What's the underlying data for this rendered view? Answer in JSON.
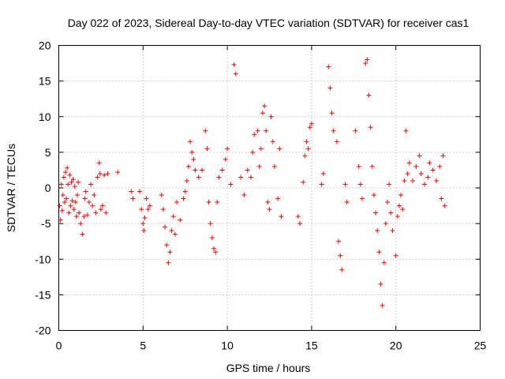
{
  "chart_data": {
    "type": "scatter",
    "title": "Day 022 of 2023, Sidereal Day-to-day VTEC variation (SDTVAR) for receiver cas1",
    "xlabel": "GPS time / hours",
    "ylabel": "SDTVAR / TECUs",
    "xlim": [
      0,
      25
    ],
    "ylim": [
      -20,
      20
    ],
    "xticks": [
      0,
      5,
      10,
      15,
      20,
      25
    ],
    "yticks": [
      -20,
      -15,
      -10,
      -5,
      0,
      5,
      10,
      15,
      20
    ],
    "grid": true,
    "marker": "+",
    "color": "#ff0000",
    "series": [
      {
        "name": "SDTVAR",
        "points": [
          [
            0.05,
            -2.5
          ],
          [
            0.1,
            -4.5
          ],
          [
            0.15,
            0.5
          ],
          [
            0.2,
            -3.2
          ],
          [
            0.25,
            -1.0
          ],
          [
            0.3,
            1.5
          ],
          [
            0.35,
            -2.0
          ],
          [
            0.4,
            2.2
          ],
          [
            0.45,
            -1.5
          ],
          [
            0.5,
            2.8
          ],
          [
            0.55,
            0.5
          ],
          [
            0.6,
            -3.5
          ],
          [
            0.65,
            1.8
          ],
          [
            0.7,
            -2.5
          ],
          [
            0.75,
            0.8
          ],
          [
            0.8,
            -1.8
          ],
          [
            0.85,
            1.2
          ],
          [
            0.9,
            -3.0
          ],
          [
            0.95,
            0.2
          ],
          [
            1.0,
            -2.0
          ],
          [
            1.05,
            -4.0
          ],
          [
            1.1,
            -1.0
          ],
          [
            1.15,
            0.8
          ],
          [
            1.2,
            -3.5
          ],
          [
            1.3,
            -5.0
          ],
          [
            1.4,
            -6.5
          ],
          [
            1.5,
            -4.0
          ],
          [
            1.55,
            -1.5
          ],
          [
            1.6,
            -0.5
          ],
          [
            1.7,
            -3.8
          ],
          [
            1.8,
            -2.0
          ],
          [
            1.9,
            0.5
          ],
          [
            2.0,
            -2.5
          ],
          [
            2.1,
            -1.0
          ],
          [
            2.2,
            -3.5
          ],
          [
            2.3,
            1.5
          ],
          [
            2.4,
            3.5
          ],
          [
            2.45,
            2.0
          ],
          [
            2.5,
            -3.0
          ],
          [
            2.6,
            -2.5
          ],
          [
            2.7,
            1.8
          ],
          [
            2.8,
            -3.5
          ],
          [
            2.9,
            2.0
          ],
          [
            3.5,
            2.2
          ],
          [
            4.3,
            -0.5
          ],
          [
            4.4,
            -1.5
          ],
          [
            4.8,
            -0.5
          ],
          [
            4.9,
            -3.0
          ],
          [
            5.0,
            -5.0
          ],
          [
            5.05,
            -6.0
          ],
          [
            5.1,
            -4.2
          ],
          [
            5.2,
            -1.5
          ],
          [
            5.3,
            -3.0
          ],
          [
            5.4,
            -2.5
          ],
          [
            6.1,
            -1.0
          ],
          [
            6.2,
            -3.0
          ],
          [
            6.3,
            -5.5
          ],
          [
            6.4,
            -8.0
          ],
          [
            6.5,
            -10.5
          ],
          [
            6.6,
            -9.0
          ],
          [
            6.7,
            -6.0
          ],
          [
            6.8,
            -4.0
          ],
          [
            6.9,
            -6.5
          ],
          [
            7.0,
            -2.0
          ],
          [
            7.2,
            -4.5
          ],
          [
            7.4,
            -1.5
          ],
          [
            7.5,
            -0.5
          ],
          [
            7.6,
            1.0
          ],
          [
            7.7,
            3.0
          ],
          [
            7.8,
            6.5
          ],
          [
            7.9,
            5.0
          ],
          [
            8.0,
            4.0
          ],
          [
            8.1,
            2.5
          ],
          [
            8.3,
            1.5
          ],
          [
            8.5,
            2.5
          ],
          [
            8.7,
            8.0
          ],
          [
            8.8,
            5.5
          ],
          [
            8.9,
            -2.0
          ],
          [
            9.0,
            -5.0
          ],
          [
            9.1,
            -7.0
          ],
          [
            9.2,
            -8.5
          ],
          [
            9.3,
            -9.0
          ],
          [
            9.4,
            -2.0
          ],
          [
            9.5,
            1.5
          ],
          [
            9.7,
            2.5
          ],
          [
            9.9,
            4.0
          ],
          [
            10.0,
            5.5
          ],
          [
            10.2,
            0.5
          ],
          [
            10.4,
            17.3
          ],
          [
            10.5,
            16.0
          ],
          [
            10.8,
            1.5
          ],
          [
            11.0,
            -1.0
          ],
          [
            11.2,
            2.5
          ],
          [
            11.4,
            1.5
          ],
          [
            11.5,
            5.0
          ],
          [
            11.6,
            7.5
          ],
          [
            11.8,
            8.0
          ],
          [
            11.9,
            3.0
          ],
          [
            12.0,
            5.5
          ],
          [
            12.1,
            10.5
          ],
          [
            12.2,
            11.5
          ],
          [
            12.3,
            8.0
          ],
          [
            12.4,
            -2.0
          ],
          [
            12.5,
            -3.0
          ],
          [
            12.6,
            10.0
          ],
          [
            12.7,
            6.5
          ],
          [
            12.8,
            3.0
          ],
          [
            13.0,
            -1.5
          ],
          [
            13.1,
            5.5
          ],
          [
            13.2,
            -4.0
          ],
          [
            14.2,
            -4.0
          ],
          [
            14.3,
            -5.0
          ],
          [
            14.5,
            0.8
          ],
          [
            14.6,
            4.5
          ],
          [
            14.7,
            6.5
          ],
          [
            14.8,
            5.5
          ],
          [
            14.9,
            8.5
          ],
          [
            15.0,
            9.0
          ],
          [
            15.6,
            0.5
          ],
          [
            15.7,
            2.0
          ],
          [
            16.0,
            17.0
          ],
          [
            16.1,
            14.0
          ],
          [
            16.2,
            10.5
          ],
          [
            16.3,
            8.0
          ],
          [
            16.5,
            6.5
          ],
          [
            16.6,
            -7.5
          ],
          [
            16.7,
            -9.5
          ],
          [
            16.8,
            -11.5
          ],
          [
            17.0,
            0.5
          ],
          [
            17.1,
            -2.0
          ],
          [
            17.6,
            8.0
          ],
          [
            17.8,
            3.0
          ],
          [
            17.9,
            0.5
          ],
          [
            18.0,
            -1.5
          ],
          [
            18.2,
            17.5
          ],
          [
            18.3,
            18.0
          ],
          [
            18.4,
            13.0
          ],
          [
            18.5,
            8.5
          ],
          [
            18.6,
            3.0
          ],
          [
            18.7,
            -1.0
          ],
          [
            18.8,
            -3.5
          ],
          [
            18.9,
            -6.0
          ],
          [
            19.0,
            -9.0
          ],
          [
            19.1,
            -13.5
          ],
          [
            19.2,
            -16.5
          ],
          [
            19.3,
            -10.5
          ],
          [
            19.4,
            -5.0
          ],
          [
            19.5,
            -2.0
          ],
          [
            19.6,
            0.5
          ],
          [
            19.7,
            -3.5
          ],
          [
            19.8,
            -6.0
          ],
          [
            20.0,
            -9.5
          ],
          [
            20.1,
            -4.0
          ],
          [
            20.2,
            -2.5
          ],
          [
            20.3,
            -1.0
          ],
          [
            20.4,
            -3.0
          ],
          [
            20.5,
            1.0
          ],
          [
            20.6,
            8.0
          ],
          [
            20.7,
            2.0
          ],
          [
            20.8,
            3.5
          ],
          [
            21.0,
            1.0
          ],
          [
            21.2,
            3.0
          ],
          [
            21.4,
            4.5
          ],
          [
            21.5,
            2.0
          ],
          [
            21.7,
            0.5
          ],
          [
            21.9,
            1.5
          ],
          [
            22.0,
            3.5
          ],
          [
            22.2,
            2.5
          ],
          [
            22.4,
            1.0
          ],
          [
            22.6,
            3.0
          ],
          [
            22.7,
            -1.5
          ],
          [
            22.8,
            4.5
          ],
          [
            22.9,
            -2.5
          ]
        ]
      }
    ]
  }
}
